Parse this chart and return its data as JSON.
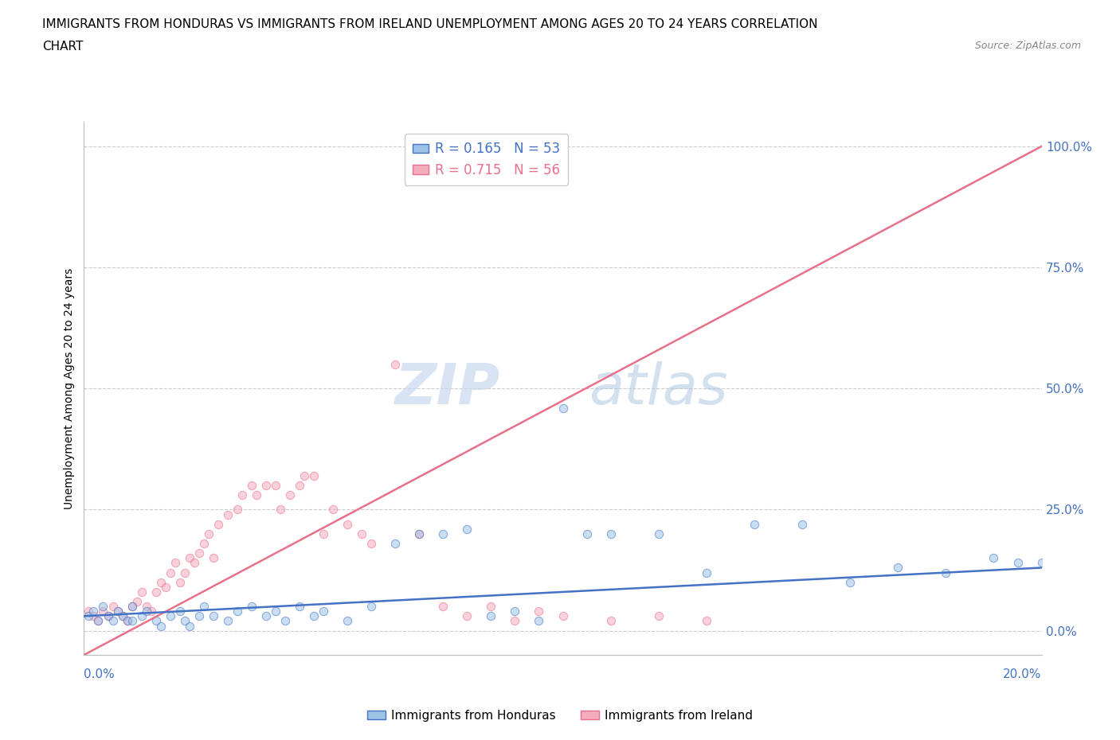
{
  "title_line1": "IMMIGRANTS FROM HONDURAS VS IMMIGRANTS FROM IRELAND UNEMPLOYMENT AMONG AGES 20 TO 24 YEARS CORRELATION",
  "title_line2": "CHART",
  "source": "Source: ZipAtlas.com",
  "ylabel": "Unemployment Among Ages 20 to 24 years",
  "xmin": 0.0,
  "xmax": 0.2,
  "ymin": -0.05,
  "ymax": 1.05,
  "right_ytick_vals": [
    0.0,
    0.25,
    0.5,
    0.75,
    1.0
  ],
  "right_yticklabels": [
    "0.0%",
    "25.0%",
    "50.0%",
    "75.0%",
    "100.0%"
  ],
  "color_honduras": "#9DC3E6",
  "color_ireland": "#F4ACBE",
  "color_line_honduras": "#4472C4",
  "color_line_ireland": "#E8708A",
  "R_honduras": 0.165,
  "N_honduras": 53,
  "R_ireland": 0.715,
  "N_ireland": 56,
  "watermark_zip": "ZIP",
  "watermark_atlas": "atlas",
  "legend_label_honduras": "Immigrants from Honduras",
  "legend_label_ireland": "Immigrants from Ireland",
  "background_color": "#FFFFFF",
  "grid_color": "#CCCCCC",
  "axis_label_color": "#4472C4",
  "scatter_alpha": 0.55,
  "scatter_size": 55,
  "honduras_x": [
    0.001,
    0.002,
    0.003,
    0.004,
    0.005,
    0.006,
    0.007,
    0.008,
    0.009,
    0.01,
    0.01,
    0.012,
    0.013,
    0.015,
    0.016,
    0.018,
    0.02,
    0.021,
    0.022,
    0.024,
    0.025,
    0.027,
    0.03,
    0.032,
    0.035,
    0.038,
    0.04,
    0.042,
    0.045,
    0.048,
    0.05,
    0.055,
    0.06,
    0.065,
    0.07,
    0.075,
    0.08,
    0.085,
    0.09,
    0.095,
    0.1,
    0.105,
    0.11,
    0.12,
    0.13,
    0.14,
    0.15,
    0.16,
    0.17,
    0.18,
    0.19,
    0.195,
    0.2
  ],
  "honduras_y": [
    0.03,
    0.04,
    0.02,
    0.05,
    0.03,
    0.02,
    0.04,
    0.03,
    0.02,
    0.05,
    0.02,
    0.03,
    0.04,
    0.02,
    0.01,
    0.03,
    0.04,
    0.02,
    0.01,
    0.03,
    0.05,
    0.03,
    0.02,
    0.04,
    0.05,
    0.03,
    0.04,
    0.02,
    0.05,
    0.03,
    0.04,
    0.02,
    0.05,
    0.18,
    0.2,
    0.2,
    0.21,
    0.03,
    0.04,
    0.02,
    0.46,
    0.2,
    0.2,
    0.2,
    0.12,
    0.22,
    0.22,
    0.1,
    0.13,
    0.12,
    0.15,
    0.14,
    0.14
  ],
  "ireland_x": [
    0.001,
    0.002,
    0.003,
    0.004,
    0.005,
    0.006,
    0.007,
    0.008,
    0.009,
    0.01,
    0.011,
    0.012,
    0.013,
    0.014,
    0.015,
    0.016,
    0.017,
    0.018,
    0.019,
    0.02,
    0.021,
    0.022,
    0.023,
    0.024,
    0.025,
    0.026,
    0.027,
    0.028,
    0.03,
    0.032,
    0.033,
    0.035,
    0.036,
    0.038,
    0.04,
    0.041,
    0.043,
    0.045,
    0.046,
    0.048,
    0.05,
    0.052,
    0.055,
    0.058,
    0.06,
    0.065,
    0.07,
    0.075,
    0.08,
    0.085,
    0.09,
    0.095,
    0.1,
    0.11,
    0.12,
    0.13
  ],
  "ireland_y": [
    0.04,
    0.03,
    0.02,
    0.04,
    0.03,
    0.05,
    0.04,
    0.03,
    0.02,
    0.05,
    0.06,
    0.08,
    0.05,
    0.04,
    0.08,
    0.1,
    0.09,
    0.12,
    0.14,
    0.1,
    0.12,
    0.15,
    0.14,
    0.16,
    0.18,
    0.2,
    0.15,
    0.22,
    0.24,
    0.25,
    0.28,
    0.3,
    0.28,
    0.3,
    0.3,
    0.25,
    0.28,
    0.3,
    0.32,
    0.32,
    0.2,
    0.25,
    0.22,
    0.2,
    0.18,
    0.55,
    0.2,
    0.05,
    0.03,
    0.05,
    0.02,
    0.04,
    0.03,
    0.02,
    0.03,
    0.02
  ]
}
